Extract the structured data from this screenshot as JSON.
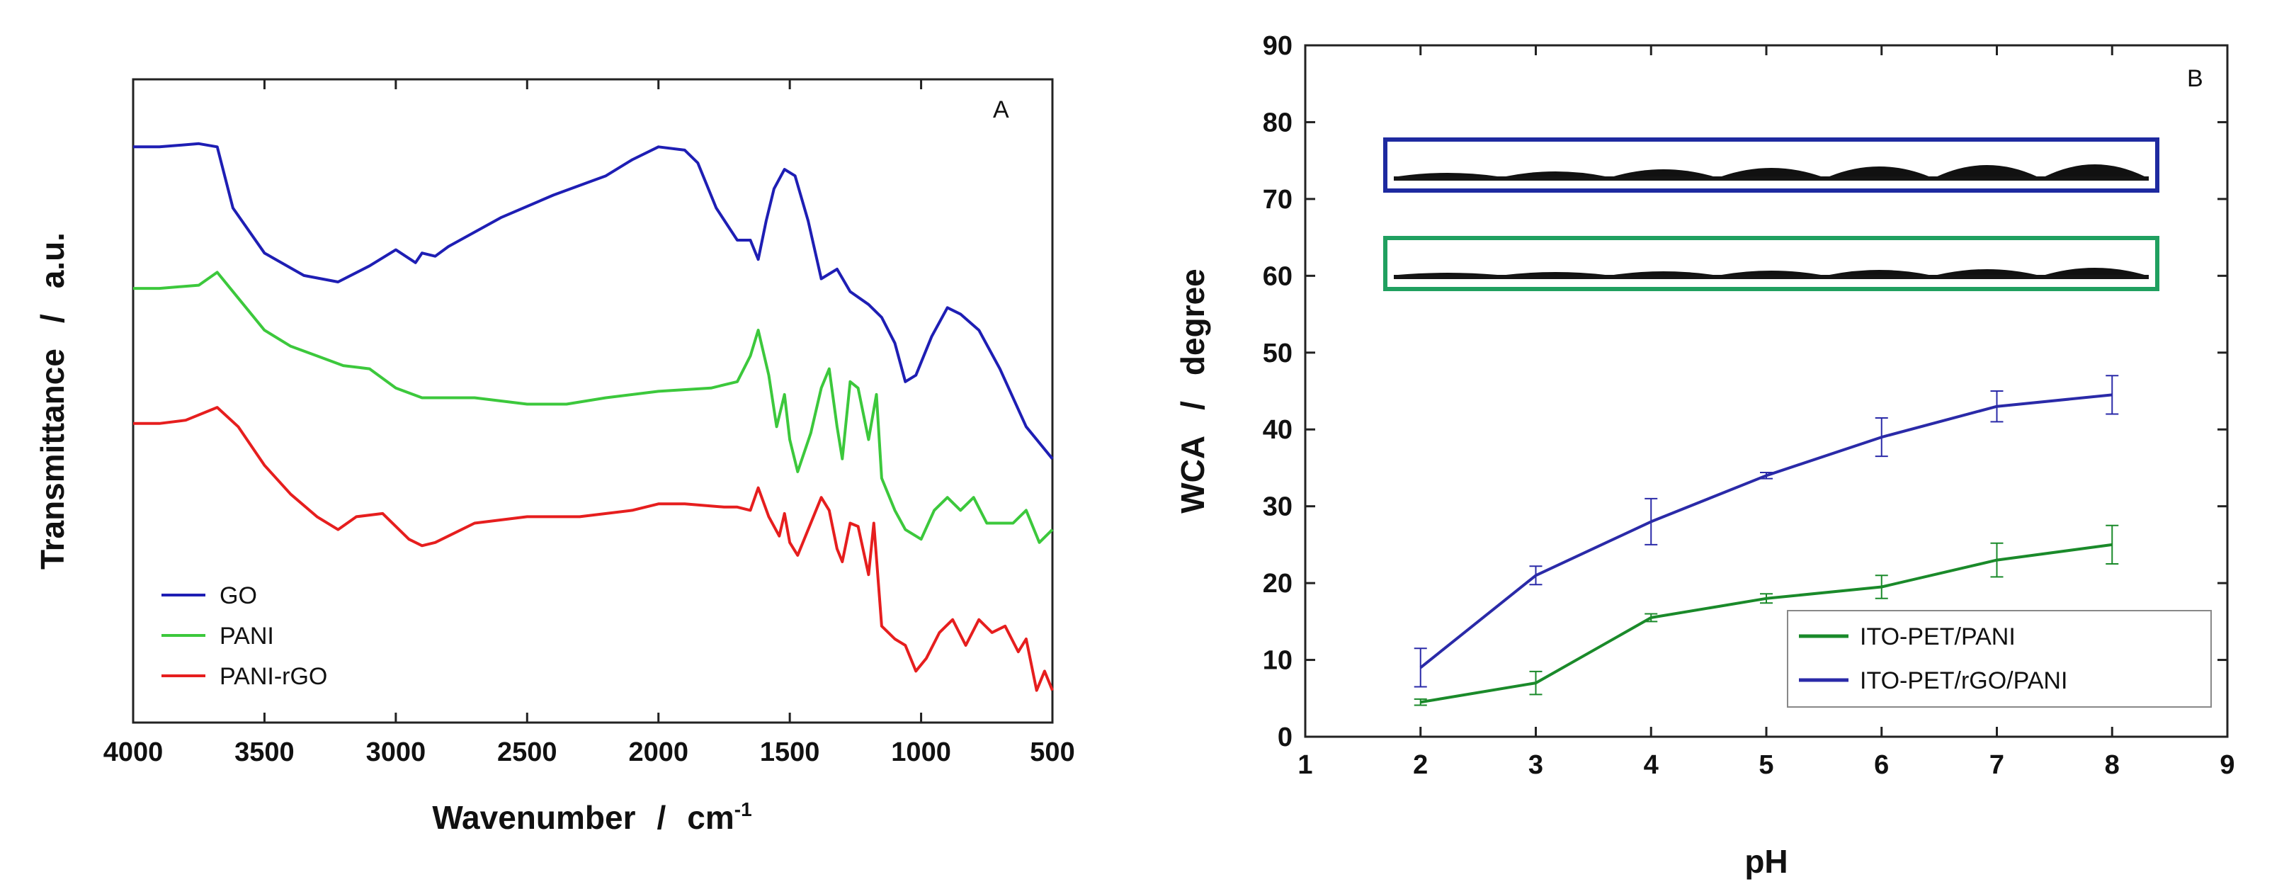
{
  "colors": {
    "go": "#1e1eb4",
    "pani": "#3cc83c",
    "panirgo": "#e61e1e",
    "pani_b": "#1a8a2a",
    "rgo_b": "#2a2aa8",
    "inset_blue": "#1e2aa0",
    "inset_green": "#20a060"
  },
  "chart_data": [
    {
      "type": "line",
      "panel": "A",
      "title": "",
      "xlabel": "Wavenumber",
      "xlabel_sep": "/",
      "xlabel_unit": "cm",
      "xlabel_unit_sup": "-1",
      "ylabel": "Transmittance",
      "ylabel_sep": "/",
      "ylabel_unit": "a.u.",
      "x_reversed": true,
      "xlim": [
        4000,
        500
      ],
      "ylim": [
        0,
        100
      ],
      "xticks": [
        "4000",
        "3500",
        "3000",
        "2500",
        "2000",
        "1500",
        "1000",
        "500"
      ],
      "xtick_values": [
        4000,
        3500,
        3000,
        2500,
        2000,
        1500,
        1000,
        500
      ],
      "legend": [
        "GO",
        "PANI",
        "PANI-rGO"
      ],
      "series": [
        {
          "name": "GO",
          "x": [
            4000,
            3900,
            3750,
            3680,
            3620,
            3500,
            3350,
            3220,
            3100,
            3000,
            2925,
            2900,
            2850,
            2800,
            2600,
            2400,
            2200,
            2100,
            2000,
            1900,
            1850,
            1780,
            1700,
            1650,
            1620,
            1590,
            1560,
            1520,
            1480,
            1430,
            1380,
            1320,
            1270,
            1200,
            1150,
            1100,
            1060,
            1020,
            960,
            900,
            850,
            780,
            700,
            600,
            500
          ],
          "y": [
            89.5,
            89.5,
            90,
            89.5,
            80,
            73,
            69.5,
            68.5,
            71,
            73.5,
            71.5,
            73,
            72.5,
            74,
            78.5,
            82,
            85,
            87.5,
            89.5,
            89,
            87,
            80,
            75,
            75,
            72,
            78,
            83,
            86,
            85,
            78,
            69,
            70.5,
            67,
            65,
            63,
            59,
            53,
            54,
            60,
            64.5,
            63.5,
            61,
            55,
            46,
            41
          ]
        },
        {
          "name": "PANI",
          "x": [
            4000,
            3900,
            3750,
            3680,
            3600,
            3500,
            3400,
            3300,
            3200,
            3100,
            3000,
            2900,
            2700,
            2500,
            2350,
            2200,
            2000,
            1800,
            1700,
            1650,
            1620,
            1580,
            1550,
            1520,
            1500,
            1470,
            1420,
            1380,
            1350,
            1320,
            1300,
            1270,
            1240,
            1200,
            1170,
            1150,
            1100,
            1060,
            1000,
            950,
            900,
            850,
            800,
            750,
            700,
            650,
            600,
            550,
            500
          ],
          "y": [
            67.5,
            67.5,
            68,
            70,
            66,
            61,
            58.5,
            57,
            55.5,
            55,
            52,
            50.5,
            50.5,
            49.5,
            49.5,
            50.5,
            51.5,
            52,
            53,
            57,
            61,
            54,
            46,
            51,
            44,
            39,
            45,
            52,
            55,
            46,
            41,
            53,
            52,
            44,
            51,
            38,
            33,
            30,
            28.5,
            33,
            35,
            33,
            35,
            31,
            31,
            31,
            33,
            28,
            30
          ]
        },
        {
          "name": "PANI-rGO",
          "x": [
            4000,
            3900,
            3800,
            3680,
            3600,
            3500,
            3400,
            3300,
            3220,
            3150,
            3050,
            2950,
            2900,
            2850,
            2700,
            2500,
            2300,
            2100,
            2000,
            1900,
            1750,
            1700,
            1650,
            1620,
            1580,
            1540,
            1520,
            1500,
            1470,
            1420,
            1380,
            1350,
            1320,
            1300,
            1270,
            1240,
            1200,
            1180,
            1150,
            1100,
            1060,
            1020,
            980,
            930,
            880,
            830,
            780,
            730,
            680,
            630,
            600,
            560,
            530,
            500
          ],
          "y": [
            46.5,
            46.5,
            47,
            49,
            46,
            40,
            35.5,
            32,
            30,
            32,
            32.5,
            28.5,
            27.5,
            28,
            31,
            32,
            32,
            33,
            34,
            34,
            33.5,
            33.5,
            33,
            36.5,
            32,
            29,
            32.5,
            28,
            26,
            31,
            35,
            33,
            27,
            25,
            31,
            30.5,
            23,
            31,
            15,
            13,
            12,
            8,
            10,
            14,
            16,
            12,
            16,
            14,
            15,
            11,
            13,
            5,
            8,
            5
          ]
        }
      ]
    },
    {
      "type": "line",
      "panel": "B",
      "title": "",
      "xlabel": "pH",
      "ylabel": "WCA",
      "ylabel_sep": "/",
      "ylabel_unit": "degree",
      "xlim": [
        1,
        9
      ],
      "ylim": [
        0,
        90
      ],
      "xticks": [
        "1",
        "2",
        "3",
        "4",
        "5",
        "6",
        "7",
        "8",
        "9"
      ],
      "xtick_values": [
        1,
        2,
        3,
        4,
        5,
        6,
        7,
        8,
        9
      ],
      "yticks": [
        "0",
        "10",
        "20",
        "30",
        "40",
        "50",
        "60",
        "70",
        "80",
        "90"
      ],
      "ytick_values": [
        0,
        10,
        20,
        30,
        40,
        50,
        60,
        70,
        80,
        90
      ],
      "legend": [
        "ITO-PET/PANI",
        "ITO-PET/rGO/PANI"
      ],
      "legend_position": "lower-right",
      "series": [
        {
          "name": "ITO-PET/PANI",
          "x": [
            2,
            3,
            4,
            5,
            6,
            7,
            8
          ],
          "y": [
            4.5,
            7,
            15.5,
            18,
            19.5,
            23,
            25
          ],
          "err": [
            0.4,
            1.5,
            0.5,
            0.6,
            1.5,
            2.2,
            2.5
          ]
        },
        {
          "name": "ITO-PET/rGO/PANI",
          "x": [
            2,
            3,
            4,
            5,
            6,
            7,
            8
          ],
          "y": [
            9,
            21,
            28,
            34,
            39,
            43,
            44.5
          ],
          "err": [
            2.5,
            1.2,
            3,
            0.4,
            2.5,
            2,
            2.5
          ]
        }
      ]
    }
  ]
}
